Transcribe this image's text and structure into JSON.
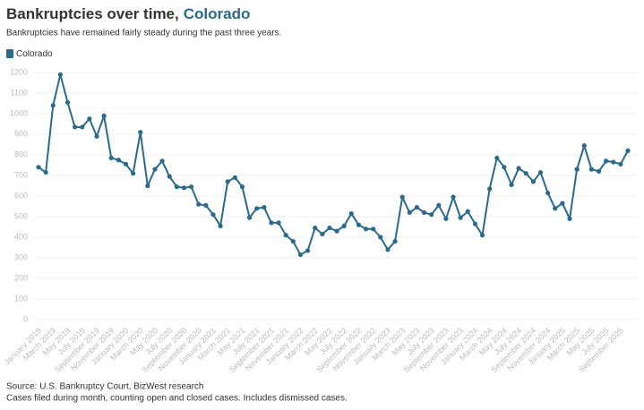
{
  "chart_data": {
    "type": "line",
    "title": "Bankruptcies over time,",
    "title_highlight": "Colorado",
    "subtitle": "Bankruptcies have remained fairly steady during the past three years.",
    "source": "Source: U.S. Bankruptcy Court, BizWest research",
    "note": "Cases filed during month, counting open and closed cases. Includes dismissed cases.",
    "categories": [
      "January 2019",
      null,
      "March 2019",
      null,
      "May 2019",
      null,
      "July 2019",
      null,
      "September 2019",
      null,
      "November 2019",
      null,
      "January 2020",
      null,
      "March 2020",
      null,
      "May 2020",
      null,
      "July 2020",
      null,
      "September 2020",
      null,
      "November 2020",
      null,
      "January 2021",
      null,
      "March 2021",
      null,
      "May 2021",
      null,
      "July 2021",
      null,
      "September 2021",
      null,
      "November 2021",
      null,
      "January 2022",
      null,
      "March 2022",
      null,
      "May 2022",
      null,
      "July 2022",
      null,
      "September 2022",
      null,
      "November 2022",
      null,
      "January 2023",
      null,
      "March 2023",
      null,
      "May 2023",
      null,
      "July 2023",
      null,
      "September 2023",
      null,
      "November 2023",
      null,
      "January 2024",
      null,
      "March 2024",
      null,
      "May 2024",
      null,
      "July 2024",
      null,
      "September 2024",
      null,
      "November 2024",
      null,
      "January 2025",
      null,
      "March 2025",
      null,
      "May 2025",
      null,
      "July 2025",
      null,
      "September 2025",
      null
    ],
    "series": [
      {
        "name": "Colorado",
        "color": "#2a6a8c",
        "values": [
          740,
          715,
          1040,
          1190,
          1055,
          935,
          935,
          975,
          890,
          990,
          785,
          775,
          755,
          710,
          910,
          650,
          730,
          770,
          695,
          645,
          640,
          645,
          560,
          555,
          510,
          455,
          670,
          690,
          645,
          495,
          540,
          545,
          470,
          470,
          410,
          380,
          315,
          335,
          445,
          415,
          445,
          430,
          455,
          515,
          460,
          440,
          440,
          400,
          340,
          380,
          595,
          520,
          545,
          520,
          510,
          555,
          490,
          595,
          495,
          525,
          465,
          410,
          635,
          785,
          740,
          655,
          735,
          710,
          670,
          715,
          615,
          540,
          565,
          490,
          730,
          845,
          730,
          720,
          770,
          765,
          755,
          820
        ]
      }
    ],
    "ylim": [
      0,
      1200
    ],
    "yticks": [
      0,
      100,
      200,
      300,
      400,
      500,
      600,
      700,
      800,
      900,
      1000,
      1100,
      1200
    ],
    "grid": true
  }
}
